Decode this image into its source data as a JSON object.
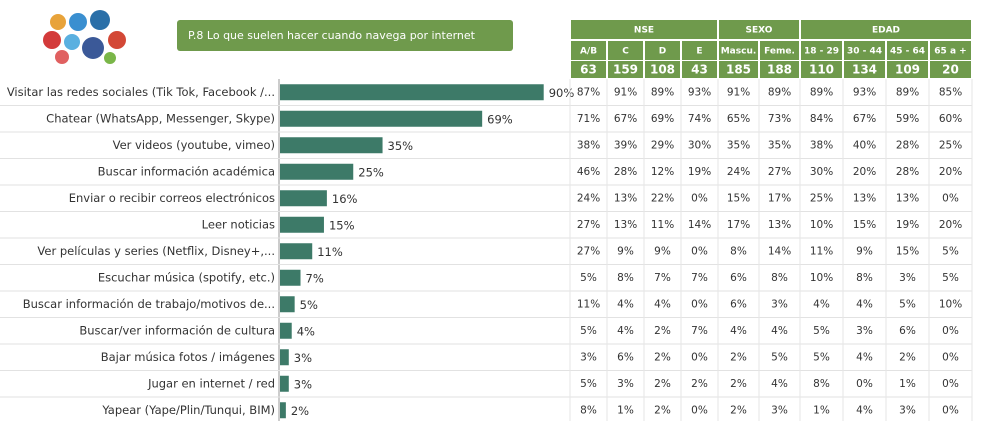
{
  "chart_data": {
    "type": "bar",
    "orientation": "horizontal",
    "title": "P.8 Lo que suelen hacer cuando navega por internet",
    "categories": [
      "Visitar las redes sociales (Tik Tok, Facebook /...",
      "Chatear (WhatsApp, Messenger, Skype)",
      "Ver videos (youtube, vimeo)",
      "Buscar información académica",
      "Enviar o recibir correos electrónicos",
      "Leer noticias",
      "Ver películas y series (Netflix, Disney+,...",
      "Escuchar música (spotify, etc.)",
      "Buscar información de trabajo/motivos de...",
      "Buscar/ver información de cultura",
      "Bajar música fotos / imágenes",
      "Jugar en internet / red",
      "Yapear (Yape/Plin/Tunqui, BIM)"
    ],
    "values": [
      90,
      69,
      35,
      25,
      16,
      15,
      11,
      7,
      5,
      4,
      3,
      3,
      2
    ],
    "value_labels": [
      "90%",
      "69%",
      "35%",
      "25%",
      "16%",
      "15%",
      "11%",
      "7%",
      "5%",
      "4%",
      "3%",
      "3%",
      "2%"
    ],
    "color": "#3d7a68"
  },
  "table": {
    "groups": [
      {
        "label": "NSE",
        "columns": [
          "A/B",
          "C",
          "D",
          "E"
        ]
      },
      {
        "label": "SEXO",
        "columns": [
          "Mascu.",
          "Feme."
        ]
      },
      {
        "label": "EDAD",
        "columns": [
          "18 - 29",
          "30 - 44",
          "45 - 64",
          "65 a +"
        ]
      }
    ],
    "sample_sizes": [
      63,
      159,
      108,
      43,
      185,
      188,
      110,
      134,
      109,
      20
    ],
    "rows": [
      [
        "87%",
        "91%",
        "89%",
        "93%",
        "91%",
        "89%",
        "89%",
        "93%",
        "89%",
        "85%"
      ],
      [
        "71%",
        "67%",
        "69%",
        "74%",
        "65%",
        "73%",
        "84%",
        "67%",
        "59%",
        "60%"
      ],
      [
        "38%",
        "39%",
        "29%",
        "30%",
        "35%",
        "35%",
        "38%",
        "40%",
        "28%",
        "25%"
      ],
      [
        "46%",
        "28%",
        "12%",
        "19%",
        "24%",
        "27%",
        "30%",
        "20%",
        "28%",
        "20%"
      ],
      [
        "24%",
        "13%",
        "22%",
        "0%",
        "15%",
        "17%",
        "25%",
        "13%",
        "13%",
        "0%"
      ],
      [
        "27%",
        "13%",
        "11%",
        "14%",
        "17%",
        "13%",
        "10%",
        "15%",
        "19%",
        "20%"
      ],
      [
        "27%",
        "9%",
        "9%",
        "0%",
        "8%",
        "14%",
        "11%",
        "9%",
        "15%",
        "5%"
      ],
      [
        "5%",
        "8%",
        "7%",
        "7%",
        "6%",
        "8%",
        "10%",
        "8%",
        "3%",
        "5%"
      ],
      [
        "11%",
        "4%",
        "4%",
        "0%",
        "6%",
        "3%",
        "4%",
        "4%",
        "5%",
        "10%"
      ],
      [
        "5%",
        "4%",
        "2%",
        "7%",
        "4%",
        "4%",
        "5%",
        "3%",
        "6%",
        "0%"
      ],
      [
        "3%",
        "6%",
        "2%",
        "0%",
        "2%",
        "5%",
        "5%",
        "4%",
        "2%",
        "0%"
      ],
      [
        "5%",
        "3%",
        "2%",
        "2%",
        "2%",
        "4%",
        "8%",
        "0%",
        "1%",
        "0%"
      ],
      [
        "8%",
        "1%",
        "2%",
        "0%",
        "2%",
        "3%",
        "1%",
        "4%",
        "3%",
        "0%"
      ]
    ]
  }
}
